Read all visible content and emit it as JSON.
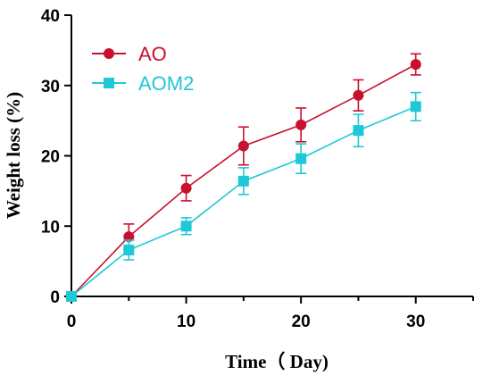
{
  "chart_data": {
    "type": "line",
    "title": "",
    "xlabel": "Time（ Day)",
    "ylabel": "Weight loss (%)",
    "xlim": [
      0,
      35
    ],
    "ylim": [
      0,
      40
    ],
    "xticks": [
      0,
      10,
      20,
      30
    ],
    "xminor_ticks": [
      5,
      15,
      25,
      35
    ],
    "yticks": [
      0,
      10,
      20,
      30,
      40
    ],
    "grid": false,
    "legend_position": "top-left",
    "series": [
      {
        "name": "AO",
        "color": "#c8102e",
        "marker": "circle",
        "x": [
          0,
          5,
          10,
          15,
          20,
          25,
          30
        ],
        "y": [
          0,
          8.5,
          15.4,
          21.4,
          24.4,
          28.6,
          33.0
        ],
        "err": [
          0,
          1.8,
          1.8,
          2.7,
          2.4,
          2.2,
          1.5
        ]
      },
      {
        "name": "AOM2",
        "color": "#1fc8d6",
        "marker": "square",
        "x": [
          0,
          5,
          10,
          15,
          20,
          25,
          30
        ],
        "y": [
          0,
          6.6,
          10.0,
          16.4,
          19.6,
          23.6,
          27.0
        ],
        "err": [
          0,
          1.4,
          1.2,
          1.9,
          2.1,
          2.3,
          2.0
        ]
      }
    ]
  }
}
